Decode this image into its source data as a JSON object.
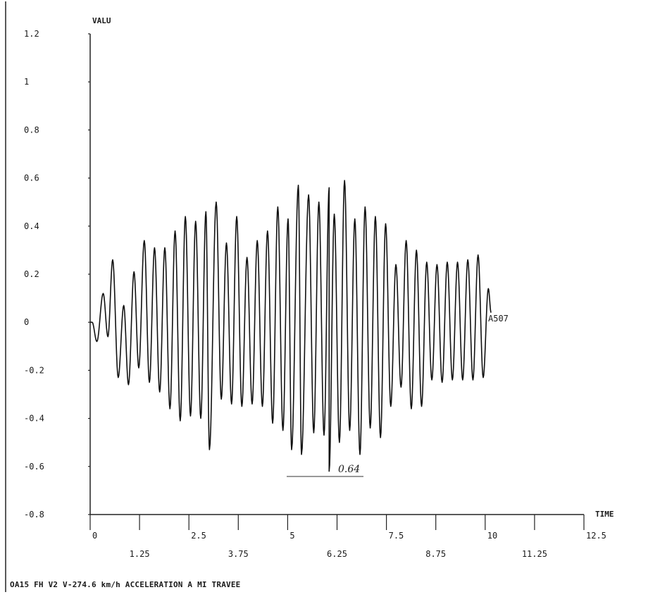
{
  "chart_data": {
    "type": "line",
    "ylabel": "VALU",
    "xlabel": "TIME",
    "series_label": "A507",
    "caption": "OA15 FH V2 V-274.6 km/h ACCELERATION A MI TRAVEE",
    "annotation": "0.64",
    "xlim": [
      0,
      12.5
    ],
    "ylim": [
      -0.8,
      1.2
    ],
    "x_ticks_major": [
      "0",
      "2.5",
      "5",
      "7.5",
      "10",
      "12.5"
    ],
    "x_ticks_minor": [
      "1.25",
      "3.75",
      "6.25",
      "8.75",
      "11.25"
    ],
    "y_ticks": [
      "1.2",
      "1",
      "0.8",
      "0.6",
      "0.4",
      "0.2",
      "0",
      "-0.2",
      "-0.4",
      "-0.6",
      "-0.8"
    ],
    "x_range": [
      0,
      10.15
    ],
    "extrema": [
      [
        0.0,
        0.0
      ],
      [
        0.05,
        0.0
      ],
      [
        0.17,
        -0.08
      ],
      [
        0.33,
        0.12
      ],
      [
        0.45,
        -0.06
      ],
      [
        0.57,
        0.26
      ],
      [
        0.71,
        -0.23
      ],
      [
        0.85,
        0.07
      ],
      [
        0.97,
        -0.26
      ],
      [
        1.11,
        0.21
      ],
      [
        1.23,
        -0.19
      ],
      [
        1.37,
        0.34
      ],
      [
        1.5,
        -0.25
      ],
      [
        1.63,
        0.31
      ],
      [
        1.76,
        -0.29
      ],
      [
        1.89,
        0.31
      ],
      [
        2.02,
        -0.36
      ],
      [
        2.15,
        0.38
      ],
      [
        2.28,
        -0.41
      ],
      [
        2.41,
        0.44
      ],
      [
        2.54,
        -0.39
      ],
      [
        2.67,
        0.42
      ],
      [
        2.8,
        -0.4
      ],
      [
        2.93,
        0.46
      ],
      [
        3.02,
        -0.53
      ],
      [
        3.19,
        0.5
      ],
      [
        3.32,
        -0.32
      ],
      [
        3.45,
        0.33
      ],
      [
        3.58,
        -0.34
      ],
      [
        3.71,
        0.44
      ],
      [
        3.84,
        -0.35
      ],
      [
        3.97,
        0.27
      ],
      [
        4.1,
        -0.34
      ],
      [
        4.23,
        0.34
      ],
      [
        4.36,
        -0.35
      ],
      [
        4.49,
        0.38
      ],
      [
        4.62,
        -0.42
      ],
      [
        4.75,
        0.48
      ],
      [
        4.88,
        -0.45
      ],
      [
        5.01,
        0.43
      ],
      [
        5.1,
        -0.53
      ],
      [
        5.27,
        0.57
      ],
      [
        5.35,
        -0.55
      ],
      [
        5.53,
        0.53
      ],
      [
        5.66,
        -0.46
      ],
      [
        5.79,
        0.5
      ],
      [
        5.92,
        -0.47
      ],
      [
        6.05,
        0.56
      ],
      [
        6.05,
        -0.62
      ],
      [
        6.18,
        0.45
      ],
      [
        6.31,
        -0.5
      ],
      [
        6.44,
        0.59
      ],
      [
        6.57,
        -0.45
      ],
      [
        6.7,
        0.43
      ],
      [
        6.83,
        -0.55
      ],
      [
        6.96,
        0.48
      ],
      [
        7.09,
        -0.44
      ],
      [
        7.22,
        0.44
      ],
      [
        7.35,
        -0.48
      ],
      [
        7.48,
        0.41
      ],
      [
        7.61,
        -0.35
      ],
      [
        7.74,
        0.24
      ],
      [
        7.87,
        -0.27
      ],
      [
        8.0,
        0.34
      ],
      [
        8.13,
        -0.36
      ],
      [
        8.26,
        0.3
      ],
      [
        8.39,
        -0.35
      ],
      [
        8.52,
        0.25
      ],
      [
        8.65,
        -0.24
      ],
      [
        8.78,
        0.24
      ],
      [
        8.91,
        -0.25
      ],
      [
        9.04,
        0.25
      ],
      [
        9.17,
        -0.24
      ],
      [
        9.3,
        0.25
      ],
      [
        9.43,
        -0.24
      ],
      [
        9.56,
        0.26
      ],
      [
        9.69,
        -0.24
      ],
      [
        9.82,
        0.28
      ],
      [
        9.95,
        -0.23
      ],
      [
        10.08,
        0.14
      ],
      [
        10.15,
        0.04
      ]
    ]
  }
}
